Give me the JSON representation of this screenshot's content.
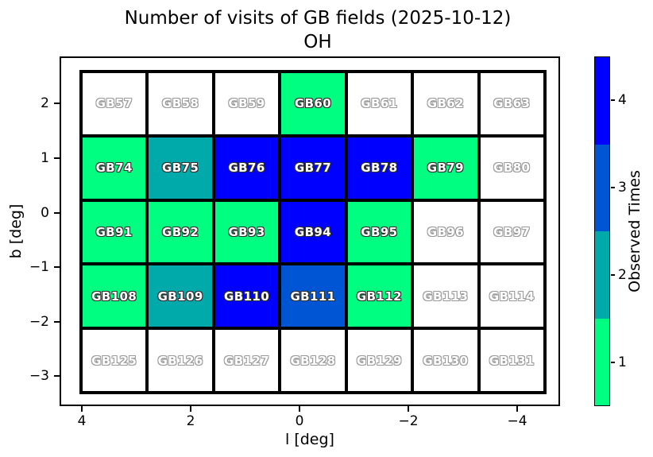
{
  "title": {
    "line1": "Number of visits of GB fields (2025-10-12)",
    "line2": "OH"
  },
  "axes": {
    "xlabel": "l [deg]",
    "ylabel": "b [deg]"
  },
  "chart_data": {
    "type": "heatmap",
    "title": "Number of visits of GB fields (2025-10-12) OH",
    "xlabel": "l [deg]",
    "ylabel": "b [deg]",
    "x_tick_labels": [
      "4",
      "2",
      "0",
      "−2",
      "−4"
    ],
    "y_tick_labels": [
      "2",
      "1",
      "0",
      "−1",
      "−2",
      "−3"
    ],
    "x_range": [
      4.6,
      -4.6
    ],
    "y_range": [
      -3.5,
      2.7
    ],
    "grid": "off",
    "legend_position": "colorbar-right",
    "value_colors": {
      "0": "#ffffff",
      "1": "#00ff80",
      "2": "#00aaaa",
      "3": "#0055d5",
      "4": "#0000ff"
    },
    "colorbar": {
      "label": "Observed Times",
      "tick_labels_top_to_bottom": [
        "4",
        "3",
        "2",
        "1"
      ],
      "segment_colors_top_to_bottom": [
        "#0000ff",
        "#0055d5",
        "#00aaaa",
        "#00ff80"
      ]
    },
    "rows": [
      [
        {
          "field": "GB57",
          "visits": 0
        },
        {
          "field": "GB58",
          "visits": 0
        },
        {
          "field": "GB59",
          "visits": 0
        },
        {
          "field": "GB60",
          "visits": 1
        },
        {
          "field": "GB61",
          "visits": 0
        },
        {
          "field": "GB62",
          "visits": 0
        },
        {
          "field": "GB63",
          "visits": 0
        }
      ],
      [
        {
          "field": "GB74",
          "visits": 1
        },
        {
          "field": "GB75",
          "visits": 2
        },
        {
          "field": "GB76",
          "visits": 4
        },
        {
          "field": "GB77",
          "visits": 4
        },
        {
          "field": "GB78",
          "visits": 4
        },
        {
          "field": "GB79",
          "visits": 1
        },
        {
          "field": "GB80",
          "visits": 0
        }
      ],
      [
        {
          "field": "GB91",
          "visits": 1
        },
        {
          "field": "GB92",
          "visits": 1
        },
        {
          "field": "GB93",
          "visits": 1
        },
        {
          "field": "GB94",
          "visits": 4
        },
        {
          "field": "GB95",
          "visits": 1
        },
        {
          "field": "GB96",
          "visits": 0
        },
        {
          "field": "GB97",
          "visits": 0
        }
      ],
      [
        {
          "field": "GB108",
          "visits": 1
        },
        {
          "field": "GB109",
          "visits": 2
        },
        {
          "field": "GB110",
          "visits": 4
        },
        {
          "field": "GB111",
          "visits": 3
        },
        {
          "field": "GB112",
          "visits": 1
        },
        {
          "field": "GB113",
          "visits": 0
        },
        {
          "field": "GB114",
          "visits": 0
        }
      ],
      [
        {
          "field": "GB125",
          "visits": 0
        },
        {
          "field": "GB126",
          "visits": 0
        },
        {
          "field": "GB127",
          "visits": 0
        },
        {
          "field": "GB128",
          "visits": 0
        },
        {
          "field": "GB129",
          "visits": 0
        },
        {
          "field": "GB130",
          "visits": 0
        },
        {
          "field": "GB131",
          "visits": 0
        }
      ]
    ]
  }
}
